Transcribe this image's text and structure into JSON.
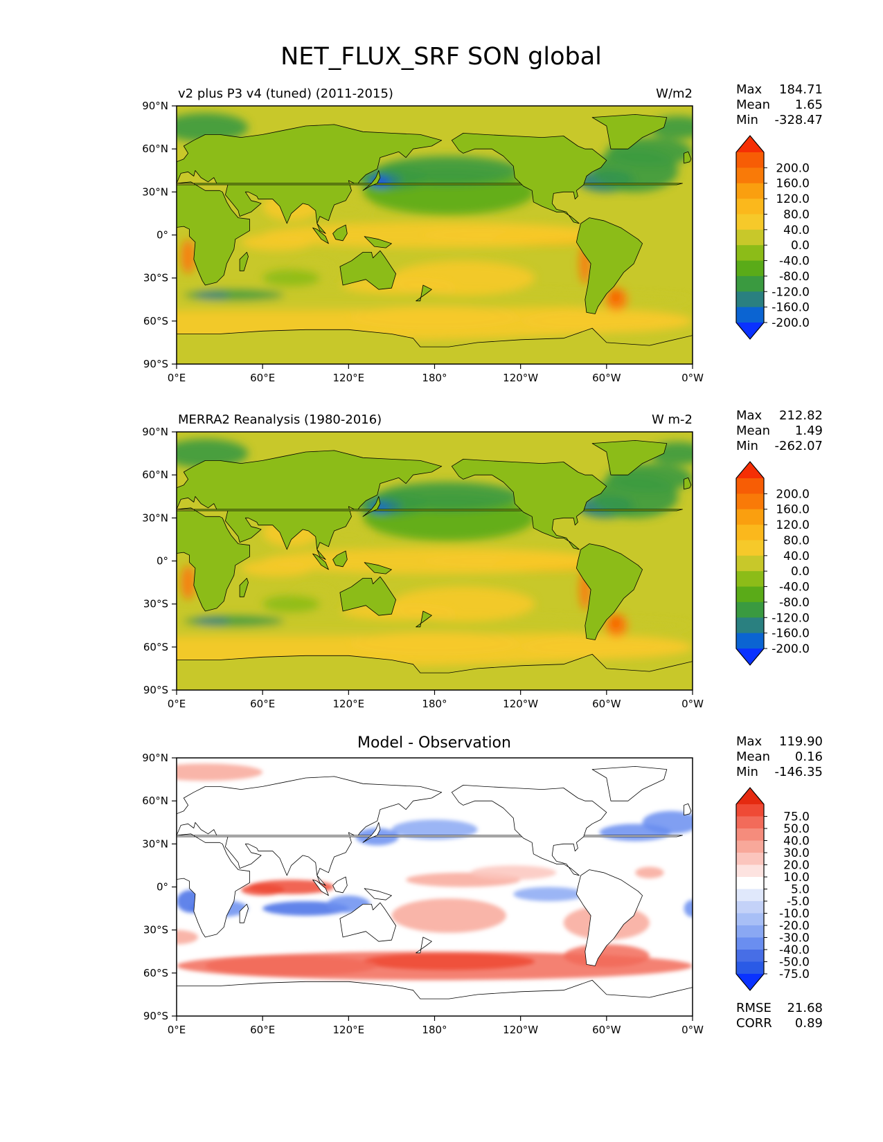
{
  "title": "NET_FLUX_SRF SON global",
  "colors": {
    "abs": [
      "#0a32ff",
      "#0b64d2",
      "#2a8080",
      "#3a9a40",
      "#5aab18",
      "#8cbc18",
      "#c8c82a",
      "#f6c92a",
      "#fbb81c",
      "#fa9f0f",
      "#f97a08",
      "#f75d05",
      "#f52f05"
    ],
    "diff": [
      "#0a32ff",
      "#2a5ae6",
      "#476ee6",
      "#6a8ef0",
      "#8aa8f3",
      "#a8bff6",
      "#c4d2f8",
      "#e0e8fb",
      "#ffffff",
      "#fde3e0",
      "#fbc5bd",
      "#f8a89a",
      "#f58c7c",
      "#f26b5a",
      "#ef4a35",
      "#e52a10"
    ],
    "land_ocean_outline": "#000000"
  },
  "chart_data": [
    {
      "type": "heatmap",
      "title": "v2 plus P3 v4 (tuned) (2011-2015)",
      "units": "W/m2",
      "stats": {
        "max_label": "Max",
        "max": "184.71",
        "mean_label": "Mean",
        "mean": "1.65",
        "min_label": "Min",
        "min": "-328.47"
      },
      "colorbar_labels": [
        "200.0",
        "160.0",
        "120.0",
        "80.0",
        "40.0",
        "0.0",
        "-40.0",
        "-80.0",
        "-120.0",
        "-160.0",
        "-200.0"
      ],
      "xticks": [
        "0°E",
        "60°E",
        "120°E",
        "180°",
        "120°W",
        "60°W",
        "0°W"
      ],
      "yticks": [
        "90°N",
        "60°N",
        "30°N",
        "0°",
        "30°S",
        "60°S",
        "90°S"
      ],
      "xlim": [
        0,
        360
      ],
      "ylim": [
        -90,
        90
      ]
    },
    {
      "type": "heatmap",
      "title": "MERRA2 Reanalysis (1980-2016)",
      "units": "W m-2",
      "stats": {
        "max_label": "Max",
        "max": "212.82",
        "mean_label": "Mean",
        "mean": "1.49",
        "min_label": "Min",
        "min": "-262.07"
      },
      "colorbar_labels": [
        "200.0",
        "160.0",
        "120.0",
        "80.0",
        "40.0",
        "0.0",
        "-40.0",
        "-80.0",
        "-120.0",
        "-160.0",
        "-200.0"
      ],
      "xticks": [
        "0°E",
        "60°E",
        "120°E",
        "180°",
        "120°W",
        "60°W",
        "0°W"
      ],
      "yticks": [
        "90°N",
        "60°N",
        "30°N",
        "0°",
        "30°S",
        "60°S",
        "90°S"
      ],
      "xlim": [
        0,
        360
      ],
      "ylim": [
        -90,
        90
      ]
    },
    {
      "type": "heatmap",
      "title": "Model - Observation",
      "units": "",
      "stats": {
        "max_label": "Max",
        "max": "119.90",
        "mean_label": "Mean",
        "mean": "0.16",
        "min_label": "Min",
        "min": "-146.35"
      },
      "colorbar_labels": [
        "75.0",
        "50.0",
        "40.0",
        "30.0",
        "20.0",
        "10.0",
        "5.0",
        "-5.0",
        "-10.0",
        "-20.0",
        "-30.0",
        "-40.0",
        "-50.0",
        "-75.0"
      ],
      "xticks": [
        "0°E",
        "60°E",
        "120°E",
        "180°",
        "120°W",
        "60°W",
        "0°W"
      ],
      "yticks": [
        "90°N",
        "60°N",
        "30°N",
        "0°",
        "30°S",
        "60°S",
        "90°S"
      ],
      "xlim": [
        0,
        360
      ],
      "ylim": [
        -90,
        90
      ],
      "extra_stats": {
        "rmse_label": "RMSE",
        "rmse": "21.68",
        "corr_label": "CORR",
        "corr": "0.89"
      }
    }
  ]
}
